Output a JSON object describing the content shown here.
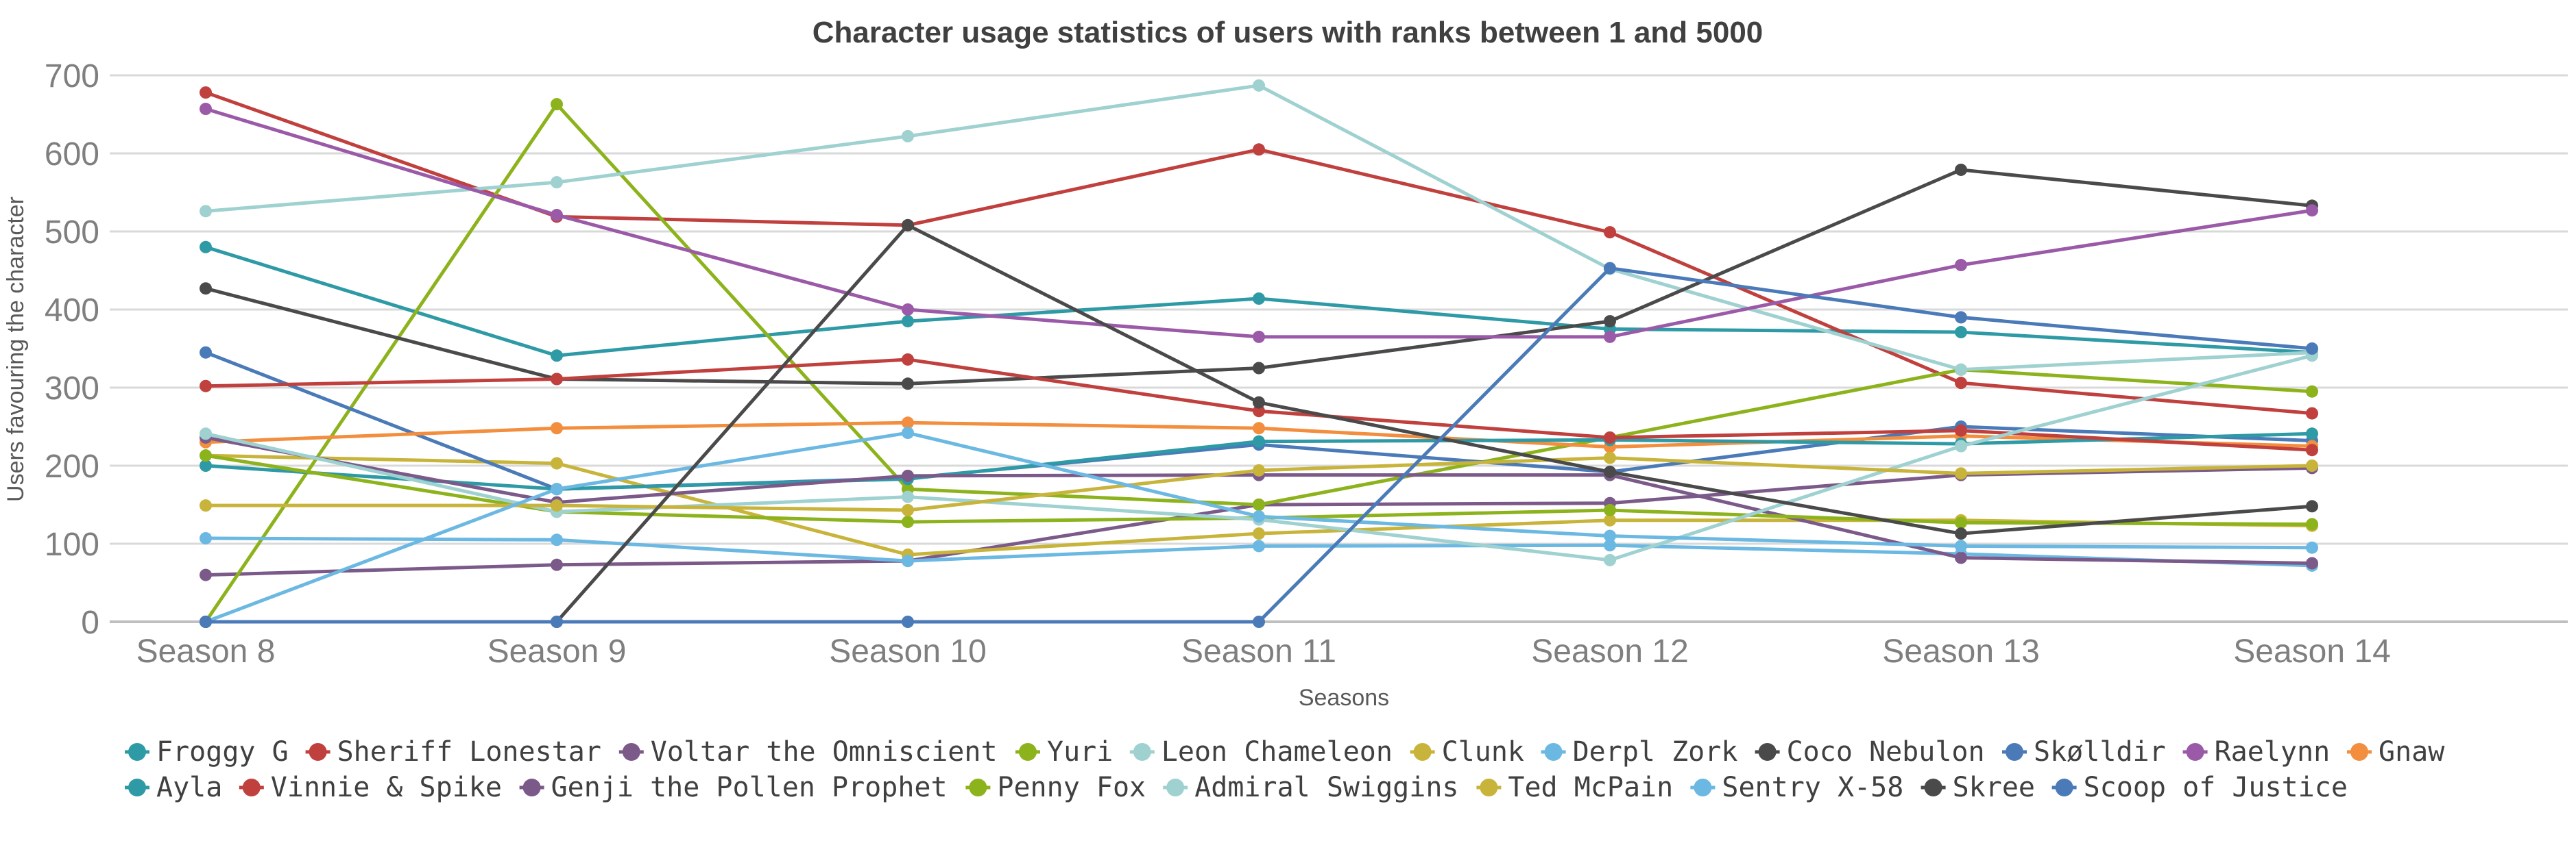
{
  "chart_data": {
    "type": "line",
    "title": "Character usage statistics of users with ranks between 1 and 5000",
    "xlabel": "Seasons",
    "ylabel": "Users favouring the character",
    "categories": [
      "Season 8",
      "Season 9",
      "Season 10",
      "Season 11",
      "Season 12",
      "Season 13",
      "Season 14"
    ],
    "y_ticks": [
      0,
      100,
      200,
      300,
      400,
      500,
      600,
      700
    ],
    "ylim": [
      0,
      700
    ],
    "grid": true,
    "legend_position": "bottom",
    "series": [
      {
        "name": "Froggy G",
        "color": "#2e9aa6",
        "values": [
          480,
          341,
          385,
          414,
          375,
          371,
          345
        ]
      },
      {
        "name": "Sheriff Lonestar",
        "color": "#c0403e",
        "values": [
          678,
          519,
          508,
          605,
          499,
          306,
          267
        ]
      },
      {
        "name": "Voltar the Omniscient",
        "color": "#7b5a8a",
        "values": [
          60,
          73,
          78,
          150,
          152,
          188,
          197
        ]
      },
      {
        "name": "Yuri",
        "color": "#8db31c",
        "values": [
          0,
          663,
          170,
          150,
          236,
          323,
          295
        ]
      },
      {
        "name": "Leon Chameleon",
        "color": "#9ed1d0",
        "values": [
          526,
          563,
          622,
          687,
          452,
          323,
          345
        ]
      },
      {
        "name": "Clunk",
        "color": "#c8b43a",
        "values": [
          213,
          203,
          86,
          113,
          130,
          130,
          123
        ]
      },
      {
        "name": "Derpl Zork",
        "color": "#6bb8e2",
        "values": [
          107,
          105,
          78,
          97,
          98,
          87,
          72
        ]
      },
      {
        "name": "Coco Nebulon",
        "color": "#4a4a4a",
        "values": [
          427,
          311,
          305,
          325,
          385,
          579,
          533
        ]
      },
      {
        "name": "Skølldir",
        "color": "#4a7ab8",
        "values": [
          345,
          170,
          184,
          227,
          192,
          250,
          232
        ]
      },
      {
        "name": "Raelynn",
        "color": "#9b5aa8",
        "values": [
          657,
          521,
          400,
          365,
          365,
          457,
          527
        ]
      },
      {
        "name": "Gnaw",
        "color": "#f28e3d",
        "values": [
          230,
          248,
          255,
          248,
          224,
          238,
          225
        ]
      },
      {
        "name": "Ayla",
        "color": "#2e9aa6",
        "values": [
          200,
          170,
          183,
          231,
          233,
          228,
          241
        ]
      },
      {
        "name": "Vinnie & Spike",
        "color": "#c0403e",
        "values": [
          302,
          311,
          336,
          270,
          236,
          245,
          220
        ]
      },
      {
        "name": "Genji the Pollen Prophet",
        "color": "#7b5a8a",
        "values": [
          236,
          153,
          187,
          188,
          188,
          82,
          75
        ]
      },
      {
        "name": "Penny Fox",
        "color": "#8db31c",
        "values": [
          213,
          141,
          128,
          133,
          143,
          127,
          125
        ]
      },
      {
        "name": "Admiral Swiggins",
        "color": "#9ed1d0",
        "values": [
          241,
          141,
          160,
          131,
          79,
          225,
          341
        ]
      },
      {
        "name": "Ted McPain",
        "color": "#c8b43a",
        "values": [
          149,
          149,
          143,
          194,
          210,
          190,
          200
        ]
      },
      {
        "name": "Sentry X-58",
        "color": "#6bb8e2",
        "values": [
          0,
          170,
          242,
          135,
          110,
          97,
          95
        ]
      },
      {
        "name": "Skree",
        "color": "#4a4a4a",
        "values": [
          0,
          0,
          508,
          281,
          192,
          113,
          148
        ]
      },
      {
        "name": "Scoop of Justice",
        "color": "#4a7ab8",
        "values": [
          0,
          0,
          0,
          0,
          453,
          390,
          350
        ]
      }
    ]
  }
}
